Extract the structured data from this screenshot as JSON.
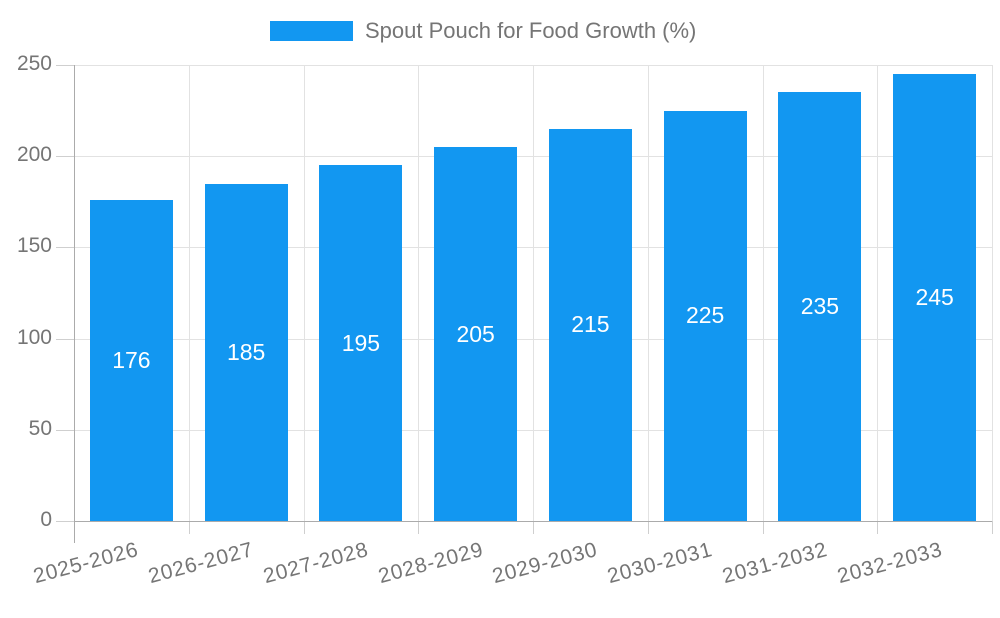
{
  "chart_data": {
    "type": "bar",
    "legend_label": "Spout Pouch for Food Growth (%)",
    "categories": [
      "2025-2026",
      "2026-2027",
      "2027-2028",
      "2028-2029",
      "2029-2030",
      "2030-2031",
      "2031-2032",
      "2032-2033"
    ],
    "values": [
      176,
      185,
      195,
      205,
      215,
      225,
      235,
      245
    ],
    "ylim": [
      0,
      250
    ],
    "yticks": [
      0,
      50,
      100,
      150,
      200,
      250
    ],
    "grid": true,
    "legend_position": "top-center",
    "xlabel_rotation_deg": -15,
    "colors": {
      "bar": "#1297F1",
      "grid": "#E2E2E2",
      "axis_line": "#ABABAB",
      "tick": "#CFCFCF",
      "axis_text": "#757575",
      "value_text": "#FFFFFF"
    }
  }
}
